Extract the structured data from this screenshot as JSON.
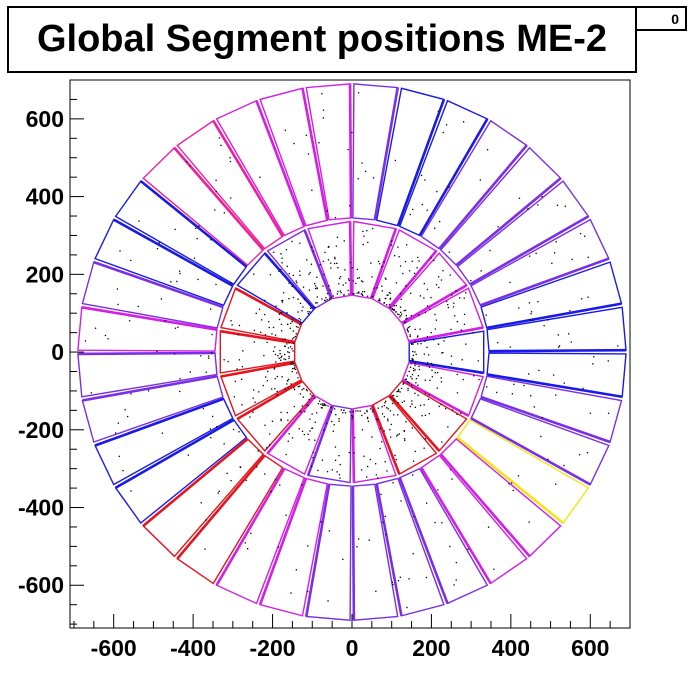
{
  "stats_box": {
    "text": "0"
  },
  "chart_data": {
    "type": "scatter",
    "title": "Global Segment positions ME-2",
    "xlabel": "",
    "ylabel": "",
    "xlim": [
      -710,
      700
    ],
    "ylim": [
      -710,
      700
    ],
    "grid": false,
    "x_ticks": [
      -600,
      -400,
      -200,
      0,
      200,
      400,
      600
    ],
    "y_ticks": [
      -600,
      -400,
      -200,
      0,
      200,
      400,
      600
    ],
    "x_tick_labels": [
      "-600",
      "-400",
      "-200",
      "0",
      "200",
      "400",
      "600"
    ],
    "y_tick_labels": [
      "-600",
      "-400",
      "-200",
      "0",
      "200",
      "400",
      "600"
    ],
    "rings": [
      {
        "name": "inner",
        "r_in": 146,
        "r_out": 336,
        "chambers": 18,
        "rotation_deg": 0
      },
      {
        "name": "outer",
        "r_in": 345,
        "r_out": 690,
        "chambers": 36,
        "rotation_deg": 5
      }
    ],
    "colors": {
      "blue": "#1a1ae6",
      "violet": "#7a2ee6",
      "magenta": "#d21ee6",
      "pink": "#f01e9a",
      "red": "#e6141e",
      "yellow": "#f0e614",
      "points": "#000000"
    },
    "inner_chamber_colors": [
      "blue",
      "magenta",
      "magenta",
      "magenta",
      "magenta",
      "magenta",
      "violet",
      "blue",
      "red",
      "red",
      "red",
      "red",
      "magenta",
      "violet",
      "magenta",
      "red",
      "red",
      "magenta"
    ],
    "outer_chamber_colors": [
      "blue",
      "blue",
      "violet",
      "violet",
      "violet",
      "violet",
      "blue",
      "blue",
      "violet",
      "magenta",
      "magenta",
      "magenta",
      "pink",
      "pink",
      "blue",
      "blue",
      "violet",
      "magenta",
      "violet",
      "violet",
      "blue",
      "blue",
      "red",
      "red",
      "magenta",
      "magenta",
      "violet",
      "violet",
      "violet",
      "violet",
      "magenta",
      "magenta",
      "yellow",
      "violet",
      "violet",
      "blue"
    ],
    "scatter_points": {
      "approx_count": 900,
      "description_of_distribution": "segment hits concentrated in inner ring near r=150-300"
    }
  }
}
